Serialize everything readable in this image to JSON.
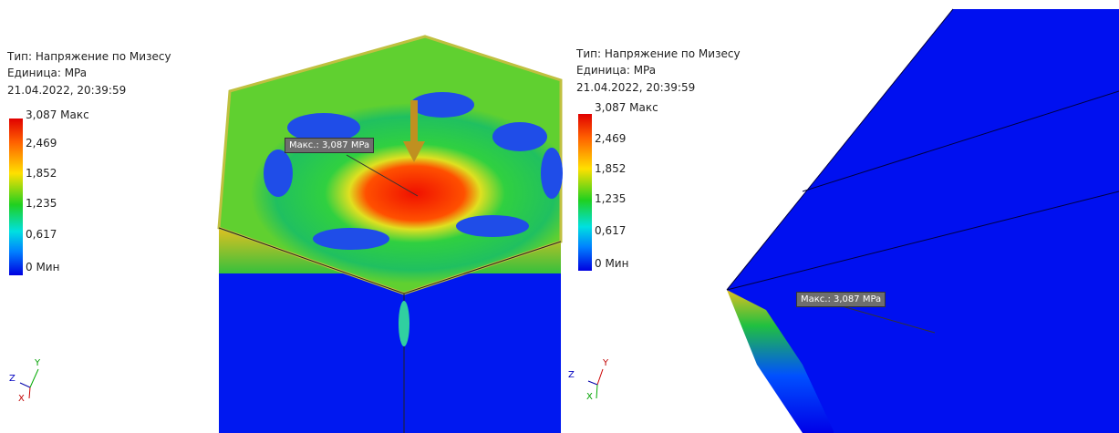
{
  "panels": [
    {
      "legend": {
        "type": "Тип: Напряжение по Мизесу",
        "unit": "Единица: MPa",
        "date": "21.04.2022, 20:39:59",
        "labels": [
          "3,087 Макс",
          "2,469",
          "1,852",
          "1,235",
          "0,617",
          "0 Мин"
        ]
      },
      "callout": "Макс.: 3,087 MPa",
      "triad": [
        "Z",
        "Y",
        "X"
      ]
    },
    {
      "legend": {
        "type": "Тип: Напряжение по Мизесу",
        "unit": "Единица: MPa",
        "date": "21.04.2022, 20:39:59",
        "labels": [
          "3,087 Макс",
          "2,469",
          "1,852",
          "1,235",
          "0,617",
          "0 Мин"
        ]
      },
      "callout": "Макс.: 3,087 MPa",
      "triad": [
        "Z",
        "Y",
        "X"
      ]
    }
  ]
}
